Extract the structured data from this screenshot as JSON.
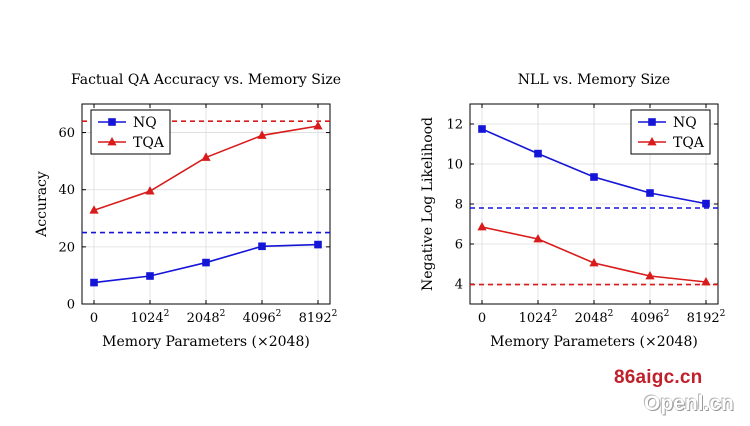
{
  "chart_data": [
    {
      "type": "line",
      "title": "Factual QA Accuracy vs. Memory Size",
      "xlabel": "Memory Parameters (×2048)",
      "ylabel": "Accuracy",
      "x_ticks": [
        {
          "base": "0",
          "sup": ""
        },
        {
          "base": "1024",
          "sup": "2"
        },
        {
          "base": "2048",
          "sup": "2"
        },
        {
          "base": "4096",
          "sup": "2"
        },
        {
          "base": "8192",
          "sup": "2"
        }
      ],
      "y_ticks": [
        0,
        20,
        40,
        60
      ],
      "ylim": [
        0,
        70
      ],
      "grid": true,
      "legend_position": "top-left",
      "series": [
        {
          "name": "NQ",
          "color": "#1515d8",
          "marker": "square",
          "values": [
            7.5,
            9.8,
            14.5,
            20.2,
            20.8
          ],
          "baseline": 25.0
        },
        {
          "name": "TQA",
          "color": "#d81b1b",
          "marker": "triangle",
          "values": [
            32.8,
            39.5,
            51.3,
            59.0,
            62.3
          ],
          "baseline": 64.0
        }
      ]
    },
    {
      "type": "line",
      "title": "NLL vs. Memory Size",
      "xlabel": "Memory Parameters (×2048)",
      "ylabel": "Negative Log Likelihood",
      "x_ticks": [
        {
          "base": "0",
          "sup": ""
        },
        {
          "base": "1024",
          "sup": "2"
        },
        {
          "base": "2048",
          "sup": "2"
        },
        {
          "base": "4096",
          "sup": "2"
        },
        {
          "base": "8192",
          "sup": "2"
        }
      ],
      "y_ticks": [
        4,
        6,
        8,
        10,
        12
      ],
      "ylim": [
        3.0,
        13.0
      ],
      "grid": true,
      "legend_position": "top-right",
      "series": [
        {
          "name": "NQ",
          "color": "#1515d8",
          "marker": "square",
          "values": [
            11.75,
            10.52,
            9.35,
            8.55,
            8.02
          ],
          "baseline": 7.8
        },
        {
          "name": "TQA",
          "color": "#d81b1b",
          "marker": "triangle",
          "values": [
            6.85,
            6.25,
            5.05,
            4.4,
            4.1
          ],
          "baseline": 3.97
        }
      ]
    }
  ],
  "watermark": {
    "line1": "86aigc.cn",
    "line2": "Openl.cn"
  }
}
